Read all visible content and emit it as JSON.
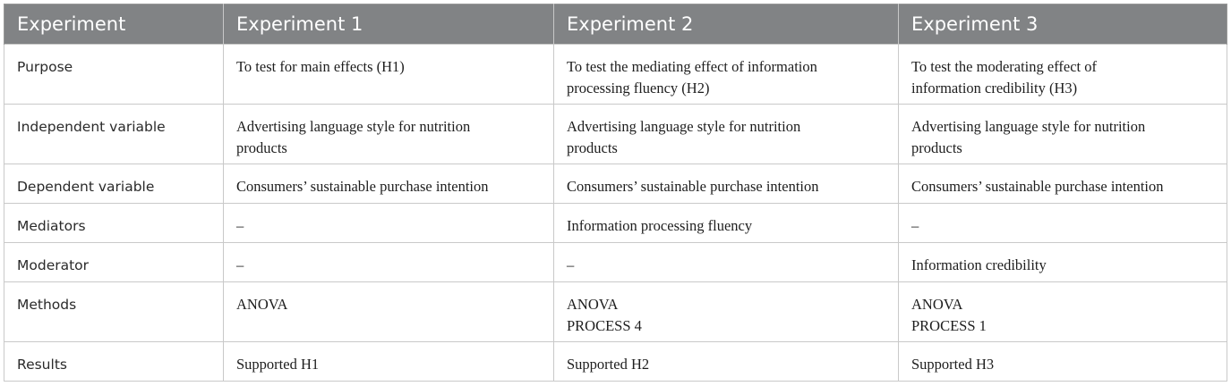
{
  "table": {
    "headers": [
      "Experiment",
      "Experiment 1",
      "Experiment 2",
      "Experiment 3"
    ],
    "rows": [
      {
        "label": "Purpose",
        "cells": [
          [
            "To test for main effects (H1)"
          ],
          [
            "To test the mediating effect of information",
            "processing fluency (H2)"
          ],
          [
            "To test the moderating effect of",
            "information credibility (H3)"
          ]
        ]
      },
      {
        "label": "Independent variable",
        "cells": [
          [
            "Advertising language style for nutrition",
            "products"
          ],
          [
            "Advertising language style for nutrition",
            "products"
          ],
          [
            "Advertising language style for nutrition",
            "products"
          ]
        ]
      },
      {
        "label": "Dependent variable",
        "cells": [
          [
            "Consumers’ sustainable purchase intention"
          ],
          [
            "Consumers’ sustainable purchase intention"
          ],
          [
            "Consumers’ sustainable purchase intention"
          ]
        ]
      },
      {
        "label": "Mediators",
        "cells": [
          [
            "–"
          ],
          [
            "Information processing fluency"
          ],
          [
            "–"
          ]
        ]
      },
      {
        "label": "Moderator",
        "cells": [
          [
            "–"
          ],
          [
            "–"
          ],
          [
            "Information credibility"
          ]
        ]
      },
      {
        "label": "Methods",
        "cells": [
          [
            "ANOVA"
          ],
          [
            "ANOVA",
            "PROCESS 4"
          ],
          [
            "ANOVA",
            "PROCESS 1"
          ]
        ]
      },
      {
        "label": "Results",
        "cells": [
          [
            "Supported H1"
          ],
          [
            "Supported H2"
          ],
          [
            "Supported H3"
          ]
        ]
      }
    ]
  }
}
